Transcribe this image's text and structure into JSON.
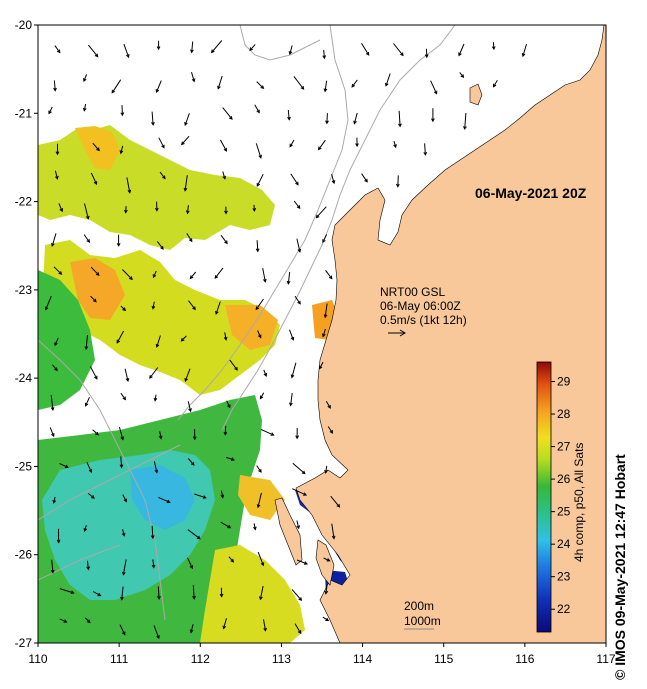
{
  "title": "06-May-2021 20Z",
  "credit": "© IMOS 09-May-2021 12:47 Hobart",
  "current_legend": {
    "line1": "NRT00 GSL",
    "line2": "06-May 06:00Z",
    "line3": "0.5m/s (1kt 12h)"
  },
  "depth_legend": {
    "line1": "200m",
    "line2": "1000m"
  },
  "colorbar": {
    "label": "4h comp, p50, All Sats",
    "ticks": [
      "22",
      "23",
      "24",
      "25",
      "26",
      "27",
      "28",
      "29"
    ],
    "min": 21.3,
    "max": 29.6
  },
  "axes": {
    "x_ticks": [
      "110",
      "111",
      "112",
      "113",
      "114",
      "115",
      "116",
      "117"
    ],
    "y_ticks": [
      "-20",
      "-21",
      "-22",
      "-23",
      "-24",
      "-25",
      "-26",
      "-27"
    ],
    "xlim": [
      110,
      117
    ],
    "ylim": [
      -27,
      -20
    ]
  },
  "colors": {
    "land": "#f8c89a",
    "ocean_cloud": "#ffffff",
    "frame": "#000000",
    "isobath": "#aaaaaa"
  }
}
